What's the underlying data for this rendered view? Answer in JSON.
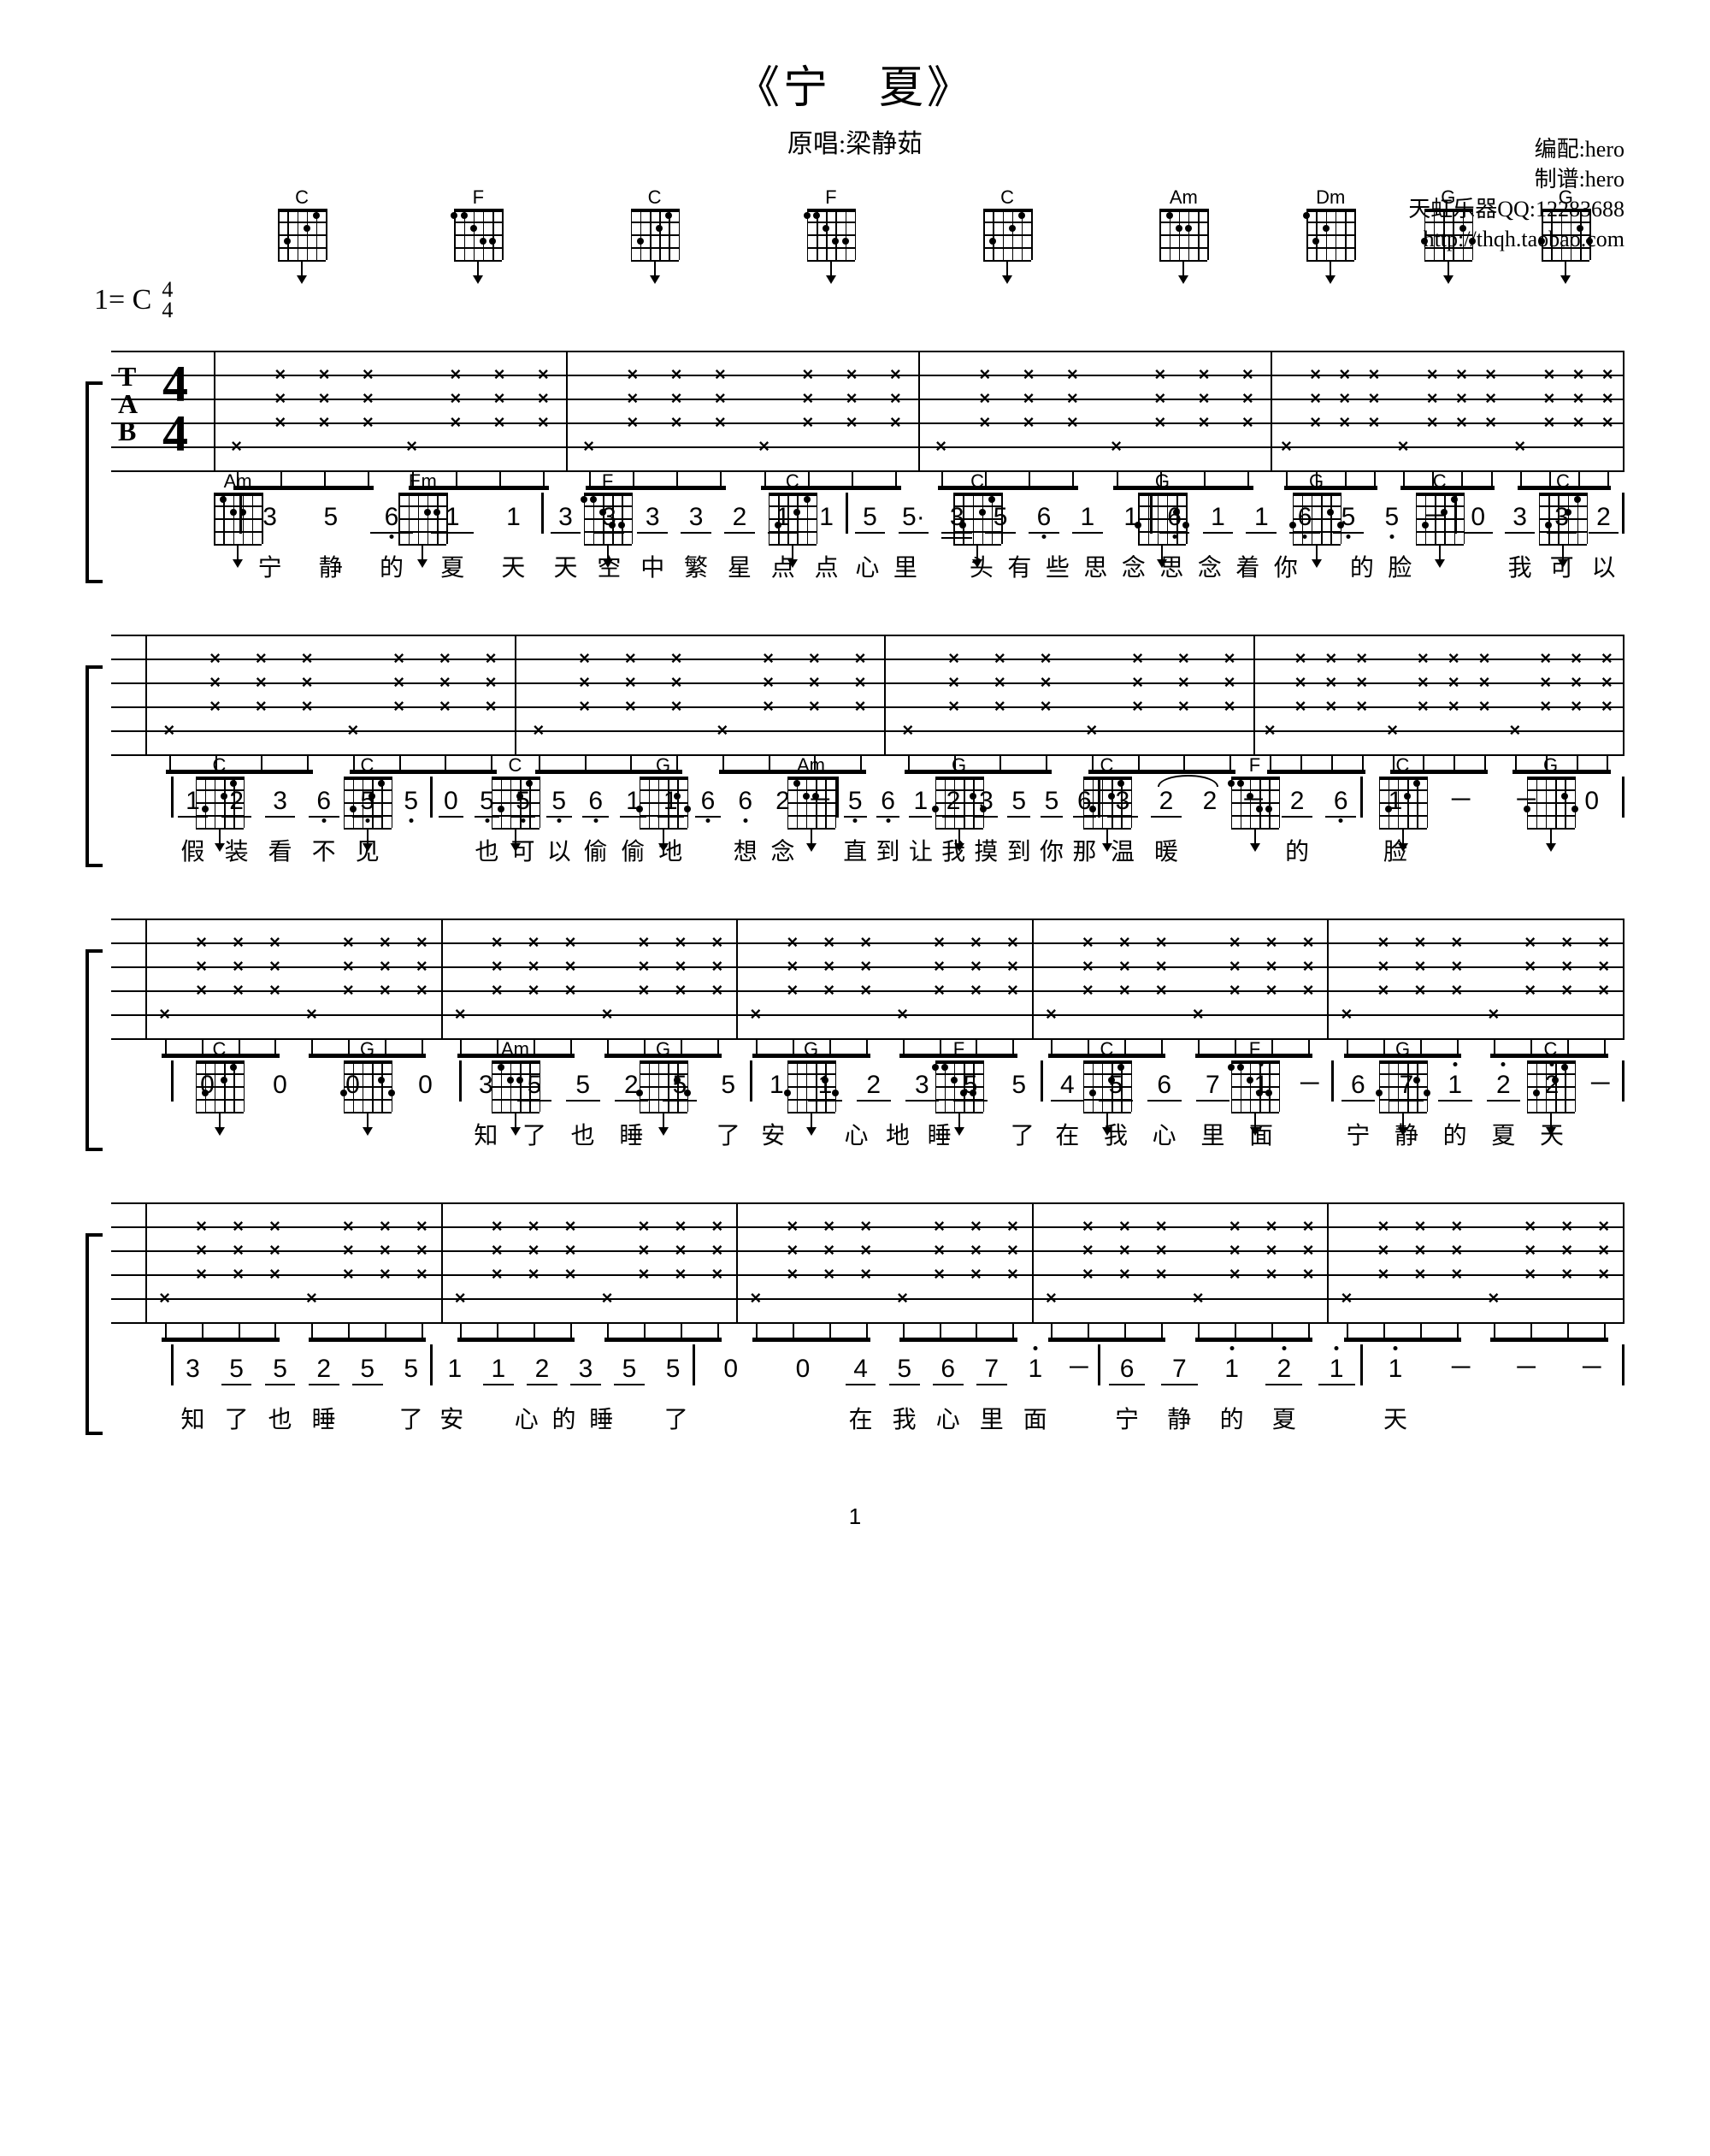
{
  "header": {
    "title": "《宁　夏》",
    "subtitle": "原唱:梁静茹"
  },
  "credits": {
    "arranger": "编配:hero",
    "transcriber": "制谱:hero",
    "contact": "天虹乐器QQ:12283688",
    "url": "http://thqh.taobao.com"
  },
  "key": {
    "tonic": "1= C",
    "num": "4",
    "den": "4"
  },
  "page": "1",
  "chord_shapes": {
    "C": {
      "name": "C",
      "dots": [
        [
          1,
          4
        ],
        [
          2,
          3
        ],
        [
          3,
          1
        ]
      ]
    },
    "F": {
      "name": "F",
      "dots": [
        [
          1,
          0
        ],
        [
          1,
          1
        ],
        [
          2,
          2
        ],
        [
          3,
          3
        ],
        [
          3,
          4
        ]
      ]
    },
    "Am": {
      "name": "Am",
      "dots": [
        [
          1,
          1
        ],
        [
          2,
          2
        ],
        [
          2,
          3
        ]
      ]
    },
    "Dm": {
      "name": "Dm",
      "dots": [
        [
          1,
          0
        ],
        [
          2,
          2
        ],
        [
          3,
          1
        ]
      ]
    },
    "G": {
      "name": "G",
      "dots": [
        [
          2,
          4
        ],
        [
          3,
          5
        ],
        [
          3,
          0
        ]
      ]
    },
    "Em": {
      "name": "Em",
      "dots": [
        [
          2,
          3
        ],
        [
          2,
          4
        ]
      ]
    }
  },
  "systems": [
    {
      "lead": "big",
      "bars": [
        {
          "chords": [
            "C",
            "F"
          ]
        },
        {
          "chords": [
            "C",
            "F"
          ]
        },
        {
          "chords": [
            "C",
            "Am"
          ]
        },
        {
          "chords": [
            "Dm",
            "G",
            "G"
          ],
          "beats": 3
        }
      ],
      "jp": [
        {
          "notes": [
            {
              "n": "3"
            },
            {
              "n": "5"
            },
            {
              "n": "6",
              "low": 1,
              "ul": 1
            },
            {
              "n": "1",
              "ul": 1
            },
            {
              "n": "1"
            }
          ],
          "ly": [
            "宁",
            "静",
            "的",
            "夏",
            "天"
          ]
        },
        {
          "notes": [
            {
              "n": "3",
              "ul": 1
            },
            {
              "n": "3",
              "ul": 1
            },
            {
              "n": "3",
              "ul": 1
            },
            {
              "n": "3",
              "ul": 1
            },
            {
              "n": "2",
              "ul": 1
            },
            {
              "n": "1",
              "ul": 1
            },
            {
              "n": "1"
            }
          ],
          "ly": [
            "天",
            "空",
            "中",
            "繁",
            "星",
            "点",
            "点"
          ]
        },
        {
          "notes": [
            {
              "n": "5",
              "ul": 1
            },
            {
              "n": "5·",
              "ul": 1
            },
            {
              "n": "3",
              "ul": 2
            },
            {
              "n": "5",
              "ul": 1
            },
            {
              "n": "6",
              "low": 1,
              "ul": 1
            },
            {
              "n": "1",
              "ul": 1
            },
            {
              "n": "1"
            }
          ],
          "ly": [
            "心",
            "里",
            "",
            "头",
            "有",
            "些",
            "思",
            "念"
          ]
        },
        {
          "notes": [
            {
              "n": "6",
              "low": 1,
              "ul": 1
            },
            {
              "n": "1",
              "ul": 1
            },
            {
              "n": "1",
              "ul": 1
            },
            {
              "n": "6",
              "low": 1,
              "ul": 1
            },
            {
              "n": "5",
              "low": 1,
              "ul": 1
            },
            {
              "n": "5",
              "low": 1
            },
            {
              "n": "－"
            }
          ],
          "ly": [
            "思",
            "念",
            "着",
            "你",
            "",
            "的",
            "脸",
            ""
          ]
        },
        {
          "notes": [
            {
              "n": "0",
              "ul": 1
            },
            {
              "n": "3",
              "ul": 1
            },
            {
              "n": "3",
              "ul": 1
            },
            {
              "n": "2",
              "ul": 1
            }
          ],
          "ly": [
            "",
            "我",
            "可",
            "以"
          ],
          "short": true
        }
      ]
    },
    {
      "lead": "small",
      "bars": [
        {
          "chords": [
            "Am",
            "Em"
          ]
        },
        {
          "chords": [
            "F",
            "C"
          ]
        },
        {
          "chords": [
            "C",
            "G"
          ]
        },
        {
          "chords": [
            "G",
            "C",
            "C"
          ],
          "beats": 3
        }
      ],
      "jp": [
        {
          "notes": [
            {
              "n": "1",
              "ul": 1
            },
            {
              "n": "2",
              "ul": 1
            },
            {
              "n": "3",
              "ul": 1
            },
            {
              "n": "6",
              "low": 1,
              "ul": 1
            },
            {
              "n": "5",
              "low": 1,
              "ul": 1
            },
            {
              "n": "5",
              "low": 1
            }
          ],
          "ly": [
            "假",
            "装",
            "看",
            "不",
            "见",
            ""
          ]
        },
        {
          "notes": [
            {
              "n": "0",
              "ul": 1
            },
            {
              "n": "5",
              "low": 1,
              "ul": 1
            },
            {
              "n": "5",
              "low": 1,
              "ul": 1
            },
            {
              "n": "5",
              "low": 1,
              "ul": 1
            }
          ],
          "ly": [
            "",
            "也",
            "可",
            "以"
          ],
          "short": true,
          "noend": true
        },
        {
          "notes": [
            {
              "n": "6",
              "low": 1,
              "ul": 1
            },
            {
              "n": "1",
              "ul": 1
            },
            {
              "n": "1",
              "ul": 1
            },
            {
              "n": "6",
              "low": 1,
              "ul": 1
            },
            {
              "n": "6",
              "low": 1
            },
            {
              "n": "2"
            },
            {
              "n": "－"
            }
          ],
          "ly": [
            "偷",
            "偷",
            "地",
            "",
            "想",
            "念",
            ""
          ]
        },
        {
          "notes": [
            {
              "n": "5",
              "low": 1,
              "ul": 1
            },
            {
              "n": "6",
              "low": 1,
              "ul": 1
            },
            {
              "n": "1",
              "ul": 1
            },
            {
              "n": "2",
              "ul": 1
            },
            {
              "n": "3",
              "ul": 1
            },
            {
              "n": "5",
              "ul": 1
            },
            {
              "n": "5",
              "ul": 1
            },
            {
              "n": "6",
              "ul": 1
            }
          ],
          "ly": [
            "直",
            "到",
            "让",
            "我",
            "摸",
            "到",
            "你",
            "那"
          ]
        },
        {
          "notes": [
            {
              "n": "3",
              "ul": 1
            },
            {
              "n": "2",
              "ul": 1
            },
            {
              "n": "2"
            },
            {
              "n": "－"
            },
            {
              "n": "2",
              "ul": 1
            },
            {
              "n": "6",
              "low": 1,
              "ul": 1
            }
          ],
          "ly": [
            "温",
            "暖",
            "",
            "",
            "的",
            ""
          ],
          "tie": [
            1,
            2
          ]
        },
        {
          "notes": [
            {
              "n": "1"
            },
            {
              "n": "－"
            },
            {
              "n": "－"
            },
            {
              "n": "0"
            }
          ],
          "ly": [
            "脸",
            "",
            "",
            ""
          ]
        }
      ]
    },
    {
      "lead": "small",
      "bars": [
        {
          "chords": [
            "C",
            "C"
          ]
        },
        {
          "chords": [
            "C",
            "G"
          ]
        },
        {
          "chords": [
            "Am",
            "G"
          ]
        },
        {
          "chords": [
            "C",
            "F"
          ]
        },
        {
          "chords": [
            "C",
            "G"
          ]
        }
      ],
      "jp": [
        {
          "notes": [
            {
              "n": "0"
            },
            {
              "n": "0"
            },
            {
              "n": "0"
            },
            {
              "n": "0"
            }
          ],
          "ly": [
            "",
            "",
            "",
            ""
          ]
        },
        {
          "notes": [
            {
              "n": "3"
            },
            {
              "n": "5",
              "ul": 1
            },
            {
              "n": "5",
              "ul": 1
            },
            {
              "n": "2",
              "ul": 1
            },
            {
              "n": "5",
              "ul": 1
            },
            {
              "n": "5"
            }
          ],
          "ly": [
            "知",
            "了",
            "也",
            "睡",
            "",
            "了"
          ]
        },
        {
          "notes": [
            {
              "n": "1"
            },
            {
              "n": "1",
              "ul": 1
            },
            {
              "n": "2",
              "ul": 1
            },
            {
              "n": "3",
              "ul": 1
            },
            {
              "n": "5",
              "ul": 1
            },
            {
              "n": "5"
            }
          ],
          "ly": [
            "安",
            "",
            "心",
            "地",
            "睡",
            "",
            "了"
          ]
        },
        {
          "notes": [
            {
              "n": "4",
              "ul": 1
            },
            {
              "n": "5",
              "ul": 1
            },
            {
              "n": "6",
              "ul": 1
            },
            {
              "n": "7",
              "ul": 1
            },
            {
              "n": "1",
              "high": 1
            },
            {
              "n": "－"
            }
          ],
          "ly": [
            "在",
            "我",
            "心",
            "里",
            "面",
            ""
          ]
        },
        {
          "notes": [
            {
              "n": "6",
              "ul": 1
            },
            {
              "n": "7",
              "ul": 1
            },
            {
              "n": "1",
              "high": 1,
              "ul": 1
            },
            {
              "n": "2",
              "high": 1,
              "ul": 1
            },
            {
              "n": "2",
              "high": 1
            },
            {
              "n": "－"
            }
          ],
          "ly": [
            "宁",
            "静",
            "的",
            "夏",
            "天",
            ""
          ]
        }
      ]
    },
    {
      "lead": "small",
      "bars": [
        {
          "chords": [
            "C",
            "G"
          ]
        },
        {
          "chords": [
            "Am",
            "G"
          ]
        },
        {
          "chords": [
            "G",
            "F"
          ]
        },
        {
          "chords": [
            "C",
            "F"
          ]
        },
        {
          "chords": [
            "G",
            "C"
          ]
        }
      ],
      "jp": [
        {
          "notes": [
            {
              "n": "3"
            },
            {
              "n": "5",
              "ul": 1
            },
            {
              "n": "5",
              "ul": 1
            },
            {
              "n": "2",
              "ul": 1
            },
            {
              "n": "5",
              "ul": 1
            },
            {
              "n": "5"
            }
          ],
          "ly": [
            "知",
            "了",
            "也",
            "睡",
            "",
            "了"
          ]
        },
        {
          "notes": [
            {
              "n": "1"
            },
            {
              "n": "1",
              "ul": 1
            },
            {
              "n": "2",
              "ul": 1
            },
            {
              "n": "3",
              "ul": 1
            },
            {
              "n": "5",
              "ul": 1
            },
            {
              "n": "5"
            }
          ],
          "ly": [
            "安",
            "",
            "心",
            "的",
            "睡",
            "",
            "了"
          ]
        },
        {
          "notes": [
            {
              "n": "0"
            },
            {
              "n": "0"
            }
          ],
          "ly": [
            "",
            ""
          ],
          "short": true,
          "noend": true
        },
        {
          "notes": [
            {
              "n": "4",
              "ul": 1
            },
            {
              "n": "5",
              "ul": 1
            },
            {
              "n": "6",
              "ul": 1
            },
            {
              "n": "7",
              "ul": 1
            },
            {
              "n": "1",
              "high": 1
            },
            {
              "n": "－"
            }
          ],
          "ly": [
            "在",
            "我",
            "心",
            "里",
            "面",
            ""
          ]
        },
        {
          "notes": [
            {
              "n": "6",
              "ul": 1
            },
            {
              "n": "7",
              "ul": 1
            },
            {
              "n": "1",
              "high": 1
            },
            {
              "n": "2",
              "high": 1,
              "ul": 1
            },
            {
              "n": "1",
              "high": 1,
              "ul": 1
            }
          ],
          "ly": [
            "宁",
            "静",
            "的",
            "夏",
            ""
          ]
        },
        {
          "notes": [
            {
              "n": "1",
              "high": 1
            },
            {
              "n": "－"
            },
            {
              "n": "－"
            },
            {
              "n": "－"
            }
          ],
          "ly": [
            "天",
            "",
            "",
            ""
          ]
        }
      ]
    }
  ]
}
